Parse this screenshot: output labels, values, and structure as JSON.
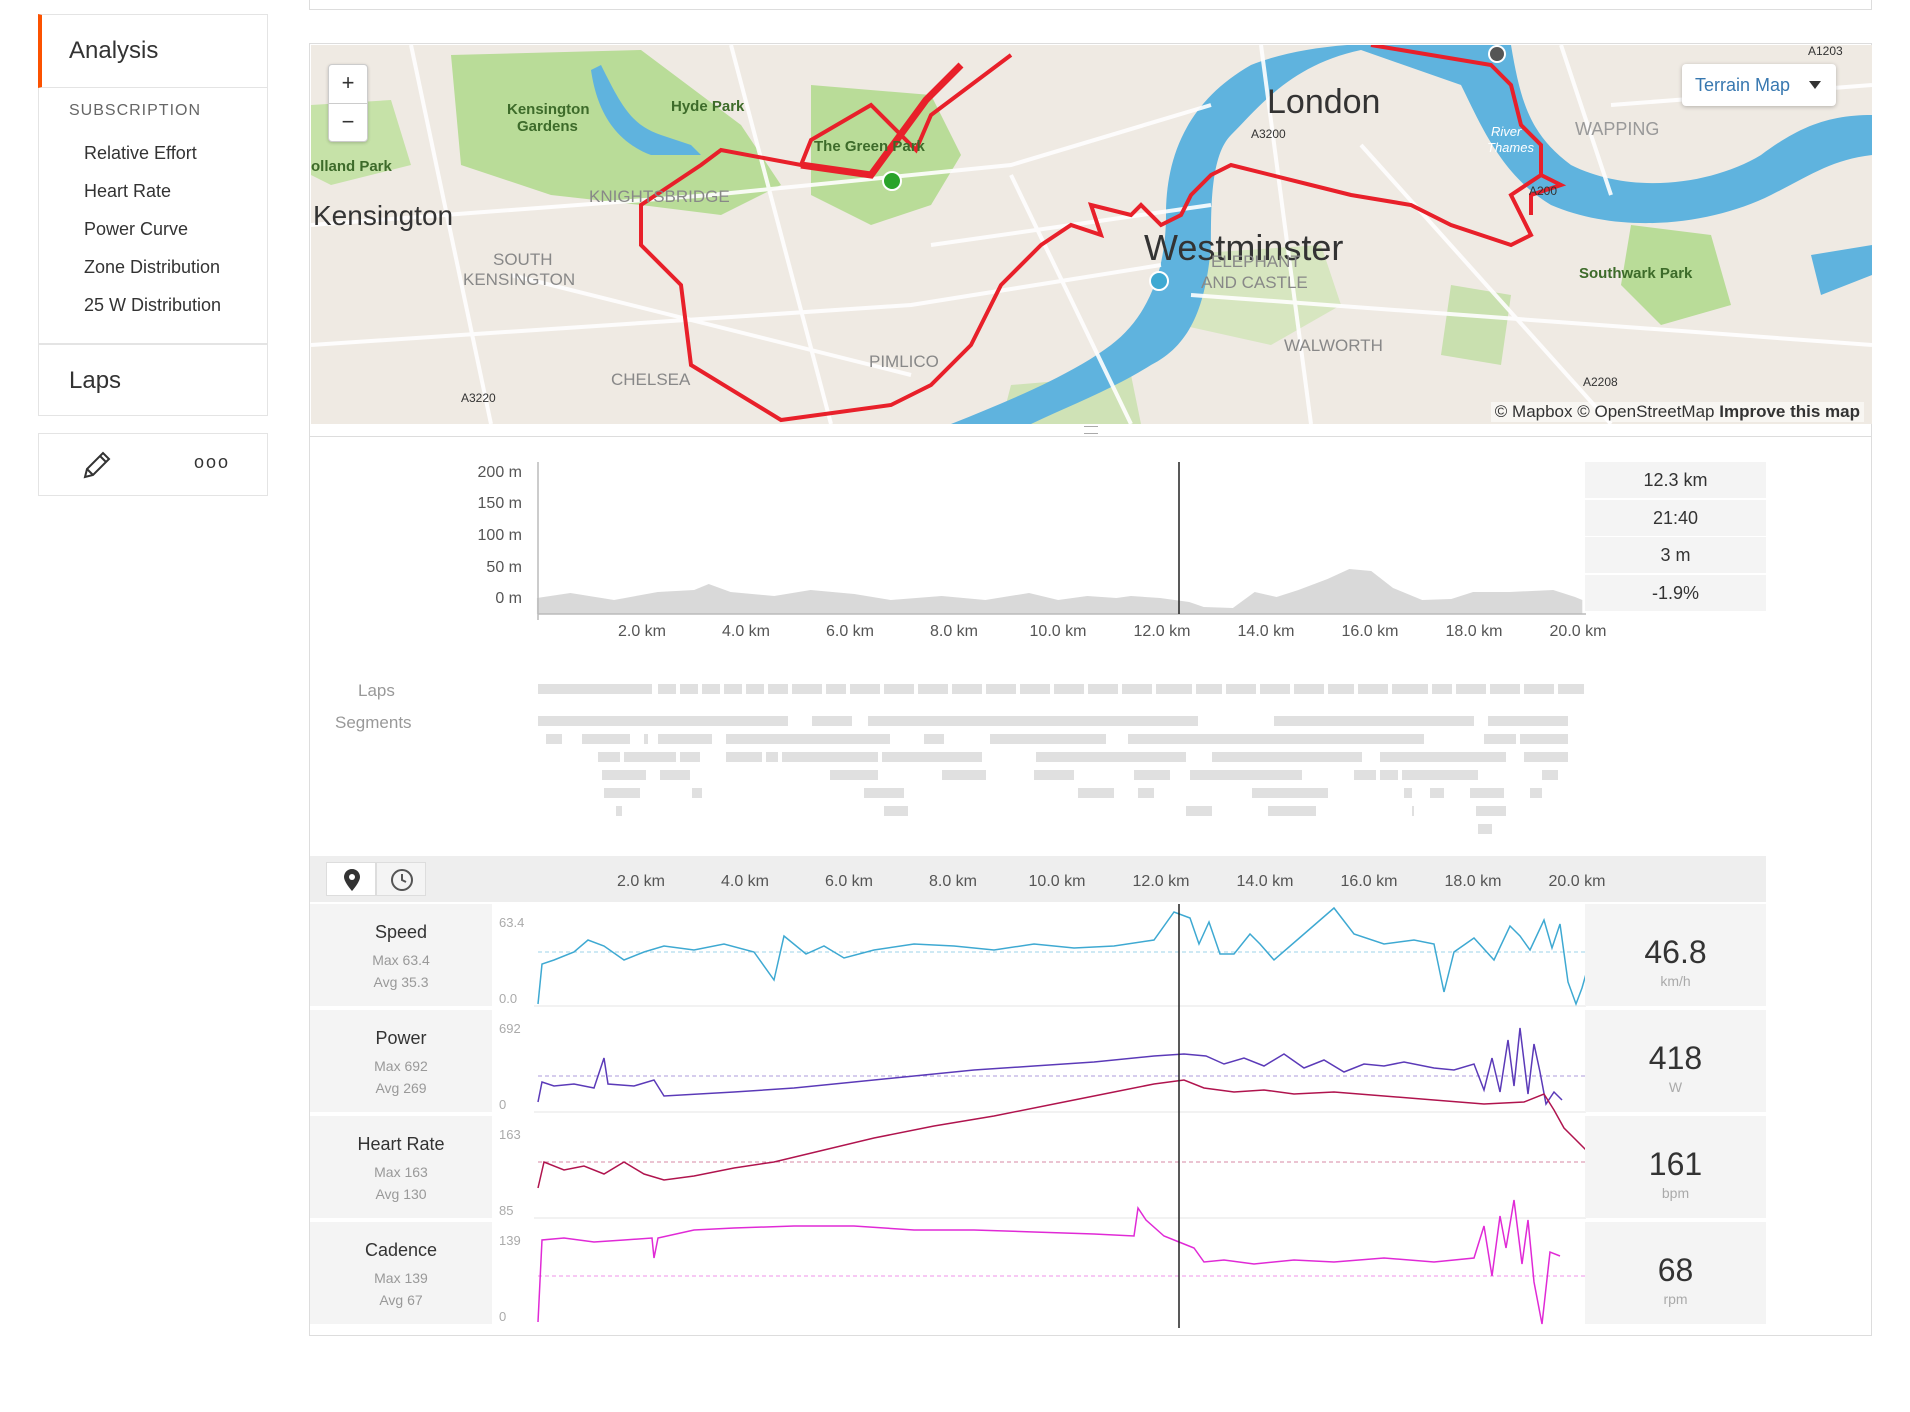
{
  "sidebar": {
    "analysis": "Analysis",
    "subscription_head": "SUBSCRIPTION",
    "items": [
      "Relative Effort",
      "Heart Rate",
      "Power Curve",
      "Zone Distribution",
      "25 W Distribution"
    ],
    "laps": "Laps",
    "edit_icon": "pencil-icon",
    "more_icon": "more-dots-icon",
    "more_label": "ooo"
  },
  "map": {
    "zoom_in": "+",
    "zoom_out": "−",
    "type_selector": "Terrain Map",
    "attribution_1": "© Mapbox © OpenStreetMap",
    "attribution_2": "Improve this map",
    "labels": {
      "london": "London",
      "westminster": "Westminster",
      "kensington": "Kensington",
      "hyde_park": "Hyde Park",
      "kensington_gardens_1": "Kensington",
      "kensington_gardens_2": "Gardens",
      "holland_park": "olland Park",
      "green_park": "The Green Park",
      "knightsbridge": "KNIGHTSBRIDGE",
      "south_ken_1": "SOUTH",
      "south_ken_2": "KENSINGTON",
      "chelsea": "CHELSEA",
      "pimlico": "PIMLICO",
      "elephant_1": "ELEPHANT",
      "elephant_2": "AND CASTLE",
      "walworth": "WALWORTH",
      "wapping": "WAPPING",
      "southwark_park": "Southwark Park",
      "river_1": "River",
      "river_2": "Thames",
      "a3200": "A3200",
      "a3220": "A3220",
      "a2208": "A2208",
      "a1203": "A1203",
      "a200": "A200"
    }
  },
  "elevation": {
    "y_ticks": [
      "200 m",
      "150 m",
      "100 m",
      "50 m",
      "0 m"
    ],
    "x_ticks": [
      "2.0 km",
      "4.0 km",
      "6.0 km",
      "8.0 km",
      "10.0 km",
      "12.0 km",
      "14.0 km",
      "16.0 km",
      "18.0 km",
      "20.0 km"
    ],
    "cursor_stats": [
      "12.3 km",
      "21:40",
      "3 m",
      "-1.9%"
    ]
  },
  "segments": {
    "laps_label": "Laps",
    "segments_label": "Segments"
  },
  "streams": {
    "x_ticks": [
      "2.0 km",
      "4.0 km",
      "6.0 km",
      "8.0 km",
      "10.0 km",
      "12.0 km",
      "14.0 km",
      "16.0 km",
      "18.0 km",
      "20.0 km"
    ],
    "tab_distance_icon": "map-pin-icon",
    "tab_time_icon": "clock-icon",
    "rows": [
      {
        "name": "Speed",
        "max": "Max 63.4",
        "avg": "Avg 35.3",
        "ymax": "63.4",
        "ymin": "0.0",
        "value": "46.8",
        "unit": "km/h",
        "color": "#3ea9d2"
      },
      {
        "name": "Power",
        "max": "Max 692",
        "avg": "Avg 269",
        "ymax": "692",
        "ymin": "0",
        "value": "418",
        "unit": "W",
        "color": "#5b3ab8"
      },
      {
        "name": "Heart Rate",
        "max": "Max 163",
        "avg": "Avg 130",
        "ymax": "163",
        "ymin": "85",
        "value": "161",
        "unit": "bpm",
        "color": "#b0144e"
      },
      {
        "name": "Cadence",
        "max": "Max 139",
        "avg": "Avg 67",
        "ymax": "139",
        "ymin": "0",
        "value": "68",
        "unit": "rpm",
        "color": "#e02ad6"
      }
    ]
  },
  "colors": {
    "accent": "#fc5200",
    "route": "#e8202a",
    "river": "#5fb3de",
    "park": "#b9dc98"
  }
}
